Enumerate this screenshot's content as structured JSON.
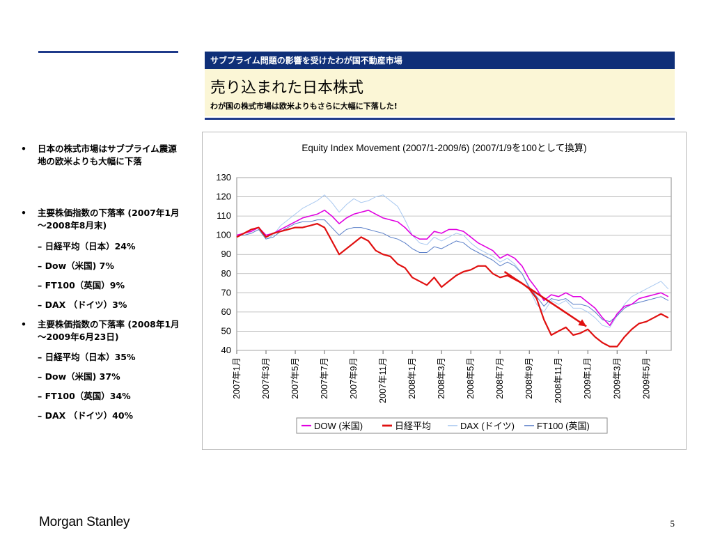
{
  "header": {
    "band_text": "サブプライム問題の影響を受けたわが国不動産市場",
    "title": "売り込まれた日本株式",
    "subtitle": "わが国の株式市場は欧米よりもさらに大幅に下落した!"
  },
  "bullets": [
    {
      "marker": "•",
      "text": "日本の株式市場はサブプライム震源地の欧米よりも大幅に下落"
    },
    {
      "marker": "•",
      "text": "主要株価指数の下落率 (2007年1月～2008年8月末)"
    },
    {
      "marker": "–",
      "text": "日経平均（日本）24%"
    },
    {
      "marker": "–",
      "text": "Dow（米国) 7%"
    },
    {
      "marker": "–",
      "text": "FT100（英国）9%"
    },
    {
      "marker": "–",
      "text": "DAX （ドイツ）3%"
    },
    {
      "marker": "•",
      "text": "主要株価指数の下落率 (2008年1月～2009年6月23日)"
    },
    {
      "marker": "–",
      "text": "日経平均（日本）35%"
    },
    {
      "marker": "–",
      "text": "Dow（米国) 37%"
    },
    {
      "marker": "–",
      "text": "FT100（英国）34%"
    },
    {
      "marker": "–",
      "text": "DAX （ドイツ）40%"
    }
  ],
  "footer": {
    "logo": "Morgan Stanley",
    "page_number": "5"
  },
  "colors": {
    "navy": "#0f2f78",
    "cream": "#fbf6d6",
    "dow": "#e000e0",
    "nikkei": "#e01010",
    "dax": "#a8c8f0",
    "ft100": "#5a7fc8",
    "arrow": "#e01010"
  },
  "chart_data": {
    "type": "line",
    "title": "Equity Index Movement (2007/1-2009/6) (2007/1/9を100として換算)",
    "ylim": [
      40,
      130
    ],
    "yticks": [
      40,
      50,
      60,
      70,
      80,
      90,
      100,
      110,
      120,
      130
    ],
    "x_tick_labels": [
      "2007年1月",
      "2007年3月",
      "2007年5月",
      "2007年7月",
      "2007年9月",
      "2007年11月",
      "2008年1月",
      "2008年3月",
      "2008年5月",
      "2008年7月",
      "2008年9月",
      "2008年11月",
      "2009年1月",
      "2009年3月",
      "2009年5月"
    ],
    "x_tick_months": [
      0,
      2,
      4,
      6,
      8,
      10,
      12,
      14,
      16,
      18,
      20,
      22,
      24,
      26,
      28
    ],
    "x_range_months": [
      0,
      29.7
    ],
    "grid": true,
    "legend_position": "bottom",
    "annotation": "red arrow pointing down from mid-2008 to late-2008",
    "series": [
      {
        "name": "DOW (米国)",
        "color": "#e000e0",
        "x": [
          0,
          0.5,
          1,
          1.5,
          2,
          2.5,
          3,
          3.5,
          4,
          4.5,
          5,
          5.5,
          6,
          6.5,
          7,
          7.5,
          8,
          8.5,
          9,
          9.5,
          10,
          10.5,
          11,
          11.5,
          12,
          12.5,
          13,
          13.5,
          14,
          14.5,
          15,
          15.5,
          16,
          16.5,
          17,
          17.5,
          18,
          18.5,
          19,
          19.5,
          20,
          20.5,
          21,
          21.5,
          22,
          22.5,
          23,
          23.5,
          24,
          24.5,
          25,
          25.5,
          26,
          26.5,
          27,
          27.5,
          28,
          28.5,
          29,
          29.5
        ],
        "values": [
          100,
          101,
          102,
          104,
          100,
          101,
          103,
          105,
          107,
          109,
          110,
          111,
          113,
          110,
          106,
          109,
          111,
          112,
          113,
          111,
          109,
          108,
          107,
          104,
          100,
          98,
          98,
          102,
          101,
          103,
          103,
          102,
          99,
          96,
          94,
          92,
          88,
          90,
          88,
          84,
          77,
          72,
          66,
          69,
          68,
          70,
          68,
          68,
          65,
          62,
          57,
          53,
          59,
          63,
          64,
          67,
          68,
          69,
          70,
          68
        ]
      },
      {
        "name": "日経平均",
        "color": "#e01010",
        "x": [
          0,
          0.5,
          1,
          1.5,
          2,
          2.5,
          3,
          3.5,
          4,
          4.5,
          5,
          5.5,
          6,
          6.5,
          7,
          7.5,
          8,
          8.5,
          9,
          9.5,
          10,
          10.5,
          11,
          11.5,
          12,
          12.5,
          13,
          13.5,
          14,
          14.5,
          15,
          15.5,
          16,
          16.5,
          17,
          17.5,
          18,
          18.5,
          19,
          19.5,
          20,
          20.5,
          21,
          21.5,
          22,
          22.5,
          23,
          23.5,
          24,
          24.5,
          25,
          25.5,
          26,
          26.5,
          27,
          27.5,
          28,
          28.5,
          29,
          29.5
        ],
        "values": [
          99,
          101,
          103,
          104,
          99,
          101,
          102,
          103,
          104,
          104,
          105,
          106,
          104,
          97,
          90,
          93,
          96,
          99,
          97,
          92,
          90,
          89,
          85,
          83,
          78,
          76,
          74,
          78,
          73,
          76,
          79,
          81,
          82,
          84,
          84,
          80,
          78,
          79,
          77,
          75,
          72,
          67,
          56,
          48,
          50,
          52,
          48,
          49,
          51,
          47,
          44,
          42,
          42,
          47,
          51,
          54,
          55,
          57,
          59,
          57
        ]
      },
      {
        "name": "DAX (ドイツ)",
        "color": "#a8c8f0",
        "x": [
          0,
          0.5,
          1,
          1.5,
          2,
          2.5,
          3,
          3.5,
          4,
          4.5,
          5,
          5.5,
          6,
          6.5,
          7,
          7.5,
          8,
          8.5,
          9,
          9.5,
          10,
          10.5,
          11,
          11.5,
          12,
          12.5,
          13,
          13.5,
          14,
          14.5,
          15,
          15.5,
          16,
          16.5,
          17,
          17.5,
          18,
          18.5,
          19,
          19.5,
          20,
          20.5,
          21,
          21.5,
          22,
          22.5,
          23,
          23.5,
          24,
          24.5,
          25,
          25.5,
          26,
          26.5,
          27,
          27.5,
          28,
          28.5,
          29,
          29.5
        ],
        "values": [
          100,
          101,
          102,
          104,
          98,
          100,
          105,
          108,
          111,
          114,
          116,
          118,
          121,
          117,
          112,
          116,
          119,
          117,
          118,
          120,
          121,
          118,
          115,
          108,
          100,
          96,
          95,
          99,
          97,
          99,
          101,
          100,
          96,
          93,
          91,
          89,
          86,
          88,
          85,
          80,
          72,
          64,
          60,
          66,
          64,
          66,
          62,
          62,
          60,
          57,
          53,
          52,
          58,
          64,
          68,
          70,
          72,
          74,
          76,
          72
        ]
      },
      {
        "name": "FT100 (英国)",
        "color": "#5a7fc8",
        "x": [
          0,
          0.5,
          1,
          1.5,
          2,
          2.5,
          3,
          3.5,
          4,
          4.5,
          5,
          5.5,
          6,
          6.5,
          7,
          7.5,
          8,
          8.5,
          9,
          9.5,
          10,
          10.5,
          11,
          11.5,
          12,
          12.5,
          13,
          13.5,
          14,
          14.5,
          15,
          15.5,
          16,
          16.5,
          17,
          17.5,
          18,
          18.5,
          19,
          19.5,
          20,
          20.5,
          21,
          21.5,
          22,
          22.5,
          23,
          23.5,
          24,
          24.5,
          25,
          25.5,
          26,
          26.5,
          27,
          27.5,
          28,
          28.5,
          29,
          29.5
        ],
        "values": [
          100,
          100,
          101,
          103,
          98,
          99,
          102,
          104,
          106,
          107,
          107,
          108,
          108,
          104,
          100,
          103,
          104,
          104,
          103,
          102,
          101,
          99,
          98,
          96,
          93,
          91,
          91,
          94,
          93,
          95,
          97,
          96,
          93,
          91,
          89,
          87,
          84,
          86,
          84,
          80,
          73,
          68,
          63,
          67,
          66,
          67,
          64,
          64,
          63,
          60,
          56,
          55,
          58,
          62,
          64,
          65,
          66,
          67,
          68,
          66
        ]
      }
    ]
  }
}
